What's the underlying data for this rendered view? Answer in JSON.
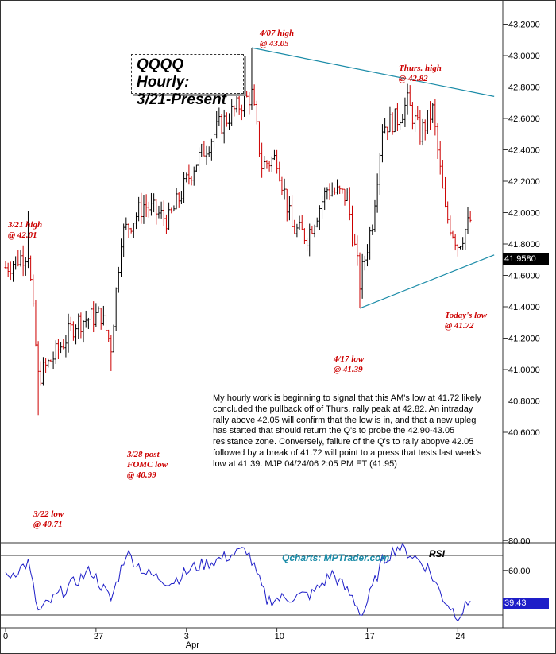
{
  "title": {
    "line1": "QQQQ Hourly:",
    "line2": "3/21-Present"
  },
  "annotations": {
    "high_321": "3/21 high\n@ 42.01",
    "low_322": "3/22 low\n@ 40.71",
    "low_328": "3/28 post-\nFOMC low\n@ 40.99",
    "high_407": "4/07 high\n@ 43.05",
    "low_417": "4/17 low\n@ 41.39",
    "thurs_high": "Thurs. high\n@ 42.82",
    "today_low": "Today's low\n@ 41.72"
  },
  "commentary": "My hourly work is beginning to signal that this AM's low at 41.72 likely concluded the pullback off of Thurs. rally peak at 42.82. An intraday rally above 42.05 will confirm that the low is in, and that a new upleg has started that should return the Q's to probe the 42.90-43.05 resistance zone. Conversely, failure of the Q's to rally abopve 42.05 followed by a break of 41.72 will point to a press that tests last week's low at 41.39.  MJP  04/24/06 2:05 PM ET (41.95)",
  "watermark": "Qcharts: MPTrader.com",
  "rsi_label": "RSI",
  "last_price": "41.9580",
  "last_rsi": "39.43",
  "colors": {
    "bars": "#000000",
    "bars_down": "#cc0000",
    "trendline": "#1c8ca8",
    "rsi_line": "#1e1ec8",
    "annotation": "#cc0000"
  },
  "chart_data": [
    {
      "type": "ohlc",
      "title": "QQQQ Hourly: 3/21-Present",
      "y_ticks": [
        "43.2000",
        "43.0000",
        "42.8000",
        "42.6000",
        "42.4000",
        "42.2000",
        "42.0000",
        "41.8000",
        "41.6000",
        "41.4000",
        "41.2000",
        "41.0000",
        "40.8000",
        "40.6000"
      ],
      "ylim": [
        40.5,
        43.25
      ],
      "x_ticks": [
        {
          "label": "0",
          "bar": 0
        },
        {
          "label": "27",
          "bar": 36
        },
        {
          "label": "3",
          "bar": 72
        },
        {
          "label": "Apr",
          "bar": 72
        },
        {
          "label": "10",
          "bar": 108
        },
        {
          "label": "17",
          "bar": 144
        },
        {
          "label": "24",
          "bar": 180
        }
      ],
      "bar_count": 186,
      "key_points": [
        {
          "bar": 0,
          "close": 41.65
        },
        {
          "bar": 9,
          "high": 42.01,
          "close": 41.75
        },
        {
          "bar": 13,
          "low": 40.71,
          "close": 40.95
        },
        {
          "bar": 20,
          "close": 41.1
        },
        {
          "bar": 28,
          "close": 41.3
        },
        {
          "bar": 38,
          "close": 41.35
        },
        {
          "bar": 42,
          "low": 40.99,
          "close": 41.15
        },
        {
          "bar": 46,
          "close": 41.85
        },
        {
          "bar": 55,
          "close": 42.05
        },
        {
          "bar": 65,
          "close": 41.95
        },
        {
          "bar": 75,
          "close": 42.3
        },
        {
          "bar": 85,
          "close": 42.55
        },
        {
          "bar": 94,
          "close": 42.7
        },
        {
          "bar": 98,
          "high": 43.05,
          "close": 42.75
        },
        {
          "bar": 102,
          "close": 42.3
        },
        {
          "bar": 108,
          "close": 42.35
        },
        {
          "bar": 114,
          "close": 41.9
        },
        {
          "bar": 120,
          "close": 41.85
        },
        {
          "bar": 128,
          "close": 42.15
        },
        {
          "bar": 136,
          "close": 42.1
        },
        {
          "bar": 141,
          "low": 41.39,
          "close": 41.55
        },
        {
          "bar": 146,
          "close": 41.95
        },
        {
          "bar": 150,
          "close": 42.55
        },
        {
          "bar": 156,
          "close": 42.6
        },
        {
          "bar": 160,
          "high": 42.82,
          "close": 42.7
        },
        {
          "bar": 165,
          "close": 42.5
        },
        {
          "bar": 170,
          "close": 42.65
        },
        {
          "bar": 175,
          "close": 42.0
        },
        {
          "bar": 180,
          "low": 41.72,
          "close": 41.8
        },
        {
          "bar": 185,
          "close": 41.95
        }
      ],
      "trendlines": [
        {
          "from": {
            "bar": 98,
            "y": 43.05
          },
          "to": {
            "bar": 185,
            "y": 42.74
          }
        },
        {
          "from": {
            "bar": 141,
            "y": 41.39
          },
          "to": {
            "bar": 185,
            "y": 41.73
          }
        }
      ]
    },
    {
      "type": "line",
      "title": "RSI",
      "y_ticks": [
        "80.00",
        "60.00"
      ],
      "ylim": [
        25,
        85
      ],
      "reference_lines": [
        70,
        30
      ],
      "key_points": [
        {
          "bar": 0,
          "value": 55
        },
        {
          "bar": 9,
          "value": 65
        },
        {
          "bar": 13,
          "value": 32
        },
        {
          "bar": 22,
          "value": 45
        },
        {
          "bar": 34,
          "value": 60
        },
        {
          "bar": 42,
          "value": 40
        },
        {
          "bar": 48,
          "value": 72
        },
        {
          "bar": 56,
          "value": 58
        },
        {
          "bar": 66,
          "value": 52
        },
        {
          "bar": 75,
          "value": 62
        },
        {
          "bar": 86,
          "value": 68
        },
        {
          "bar": 96,
          "value": 74
        },
        {
          "bar": 104,
          "value": 40
        },
        {
          "bar": 114,
          "value": 42
        },
        {
          "bar": 122,
          "value": 44
        },
        {
          "bar": 130,
          "value": 58
        },
        {
          "bar": 138,
          "value": 42
        },
        {
          "bar": 142,
          "value": 30
        },
        {
          "bar": 150,
          "value": 66
        },
        {
          "bar": 156,
          "value": 76
        },
        {
          "bar": 162,
          "value": 70
        },
        {
          "bar": 168,
          "value": 62
        },
        {
          "bar": 174,
          "value": 42
        },
        {
          "bar": 180,
          "value": 29
        },
        {
          "bar": 185,
          "value": 39.43
        }
      ]
    }
  ]
}
